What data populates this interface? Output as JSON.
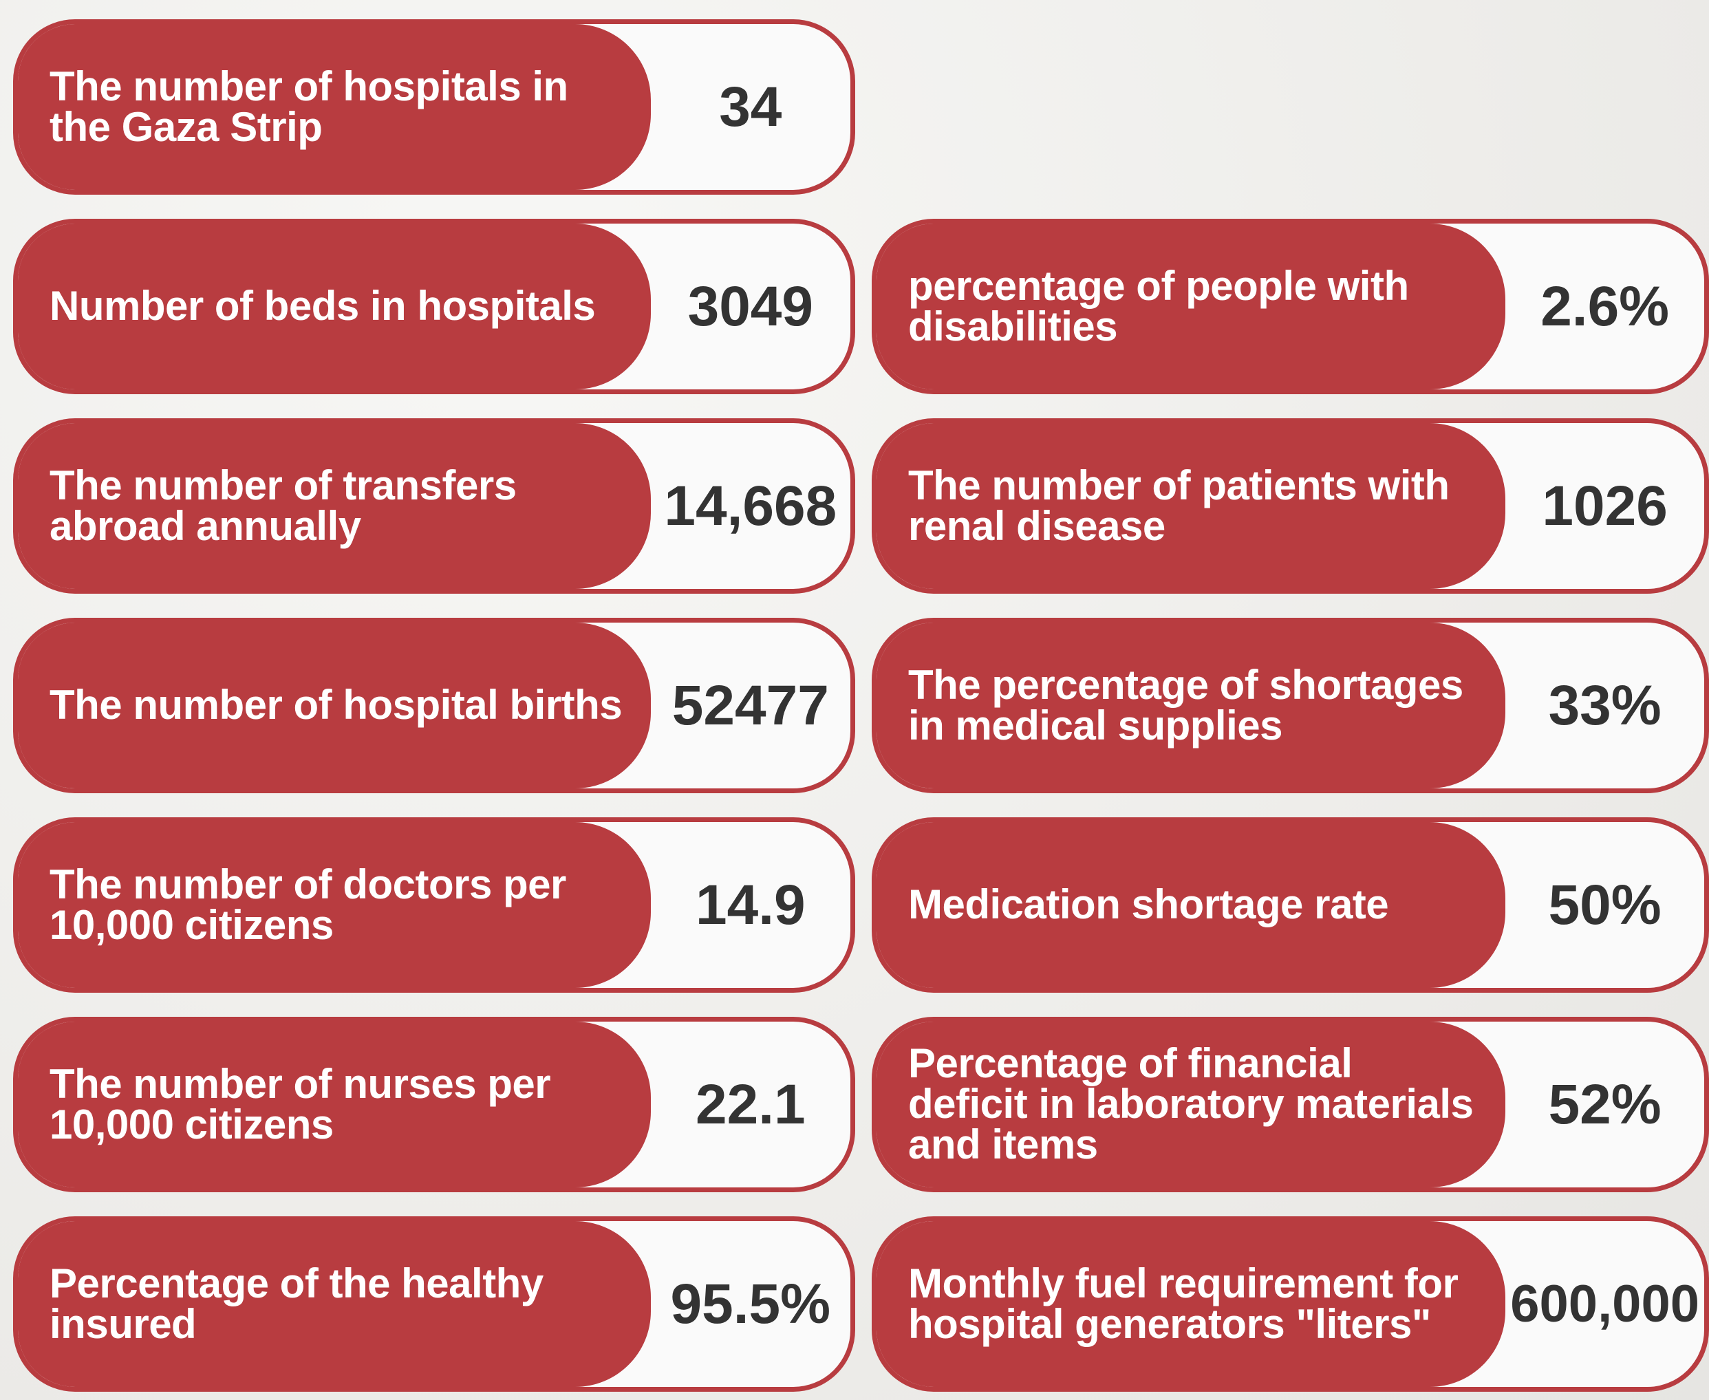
{
  "left": [
    {
      "label": "The number of hospitals in the Gaza Strip",
      "value": "34"
    },
    {
      "label": "Number of beds in hospitals",
      "value": "3049"
    },
    {
      "label": "The number of transfers abroad annually",
      "value": "14,668"
    },
    {
      "label": "The number of hospital births",
      "value": "52477"
    },
    {
      "label": "The number of doctors per 10,000 citizens",
      "value": "14.9"
    },
    {
      "label": "The number of nurses per 10,000 citizens",
      "value": "22.1"
    },
    {
      "label": "Percentage of the healthy insured",
      "value": "95.5%"
    }
  ],
  "right": [
    {
      "label": "percentage of people with disabilities",
      "value": "2.6%"
    },
    {
      "label": "The number of patients with renal disease",
      "value": "1026"
    },
    {
      "label": "The percentage of shortages in medical supplies",
      "value": "33%"
    },
    {
      "label": "Medication shortage rate",
      "value": "50%"
    },
    {
      "label": "Percentage of financial deficit in laboratory materials and items",
      "value": "52%"
    },
    {
      "label": "Monthly fuel requirement for hospital generators \"liters\"",
      "value": "600,000"
    }
  ]
}
